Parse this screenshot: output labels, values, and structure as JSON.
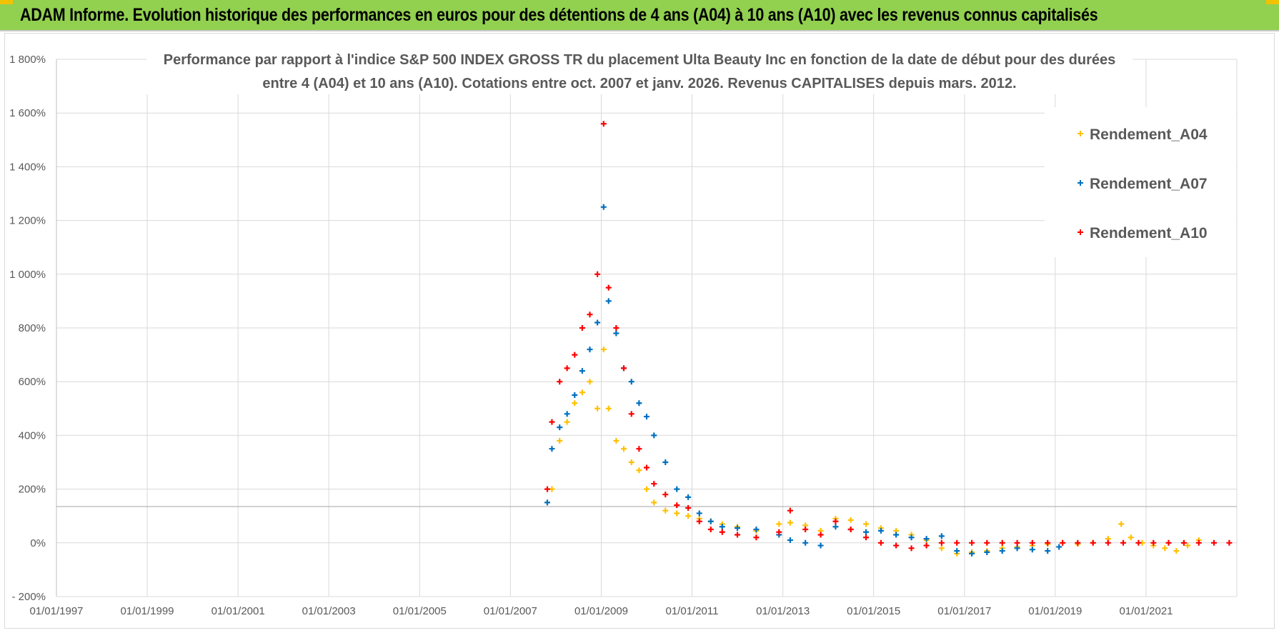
{
  "banner": {
    "text": "ADAM Informe. Evolution historique des performances en euros pour des détentions de 4 ans (A04) à 10 ans (A10) avec les revenus connus capitalisés"
  },
  "colors": {
    "banner_bg": "#92d050",
    "A04": "#ffc000",
    "A07": "#0070c0",
    "A10": "#ff0000",
    "grid": "#d9d9d9"
  },
  "chart_data": {
    "type": "scatter",
    "title_lines": [
      "Performance par rapport à l'indice S&P 500 INDEX GROSS TR  du placement Ulta Beauty Inc en fonction de la date de début pour des durées",
      "entre 4 (A04) et 10 ans (A10).  Cotations entre oct. 2007 et janv. 2026.  Revenus CAPITALISES depuis mars. 2012."
    ],
    "ylim": [
      -200,
      1800
    ],
    "y_ticks": [
      -200,
      0,
      200,
      400,
      600,
      800,
      1000,
      1200,
      1400,
      1600,
      1800
    ],
    "y_tick_labels": [
      "- 200%",
      "0%",
      "200%",
      "400%",
      "600%",
      "800%",
      "1 000%",
      "1 200%",
      "1 400%",
      "1 600%",
      "1 800%"
    ],
    "xlim": [
      "1997-01-01",
      "2023-01-01"
    ],
    "x_ticks": [
      "1997-01-01",
      "1999-01-01",
      "2001-01-01",
      "2003-01-01",
      "2005-01-01",
      "2007-01-01",
      "2009-01-01",
      "2011-01-01",
      "2013-01-01",
      "2015-01-01",
      "2017-01-01",
      "2019-01-01",
      "2021-01-01"
    ],
    "x_tick_labels": [
      "01/01/1997",
      "01/01/1999",
      "01/01/2001",
      "01/01/2003",
      "01/01/2005",
      "01/01/2007",
      "01/01/2009",
      "01/01/2011",
      "01/01/2013",
      "01/01/2015",
      "01/01/2017",
      "01/01/2019",
      "01/01/2021"
    ],
    "grid": true,
    "legend_position": "top-right",
    "marker": "+",
    "series": [
      {
        "name": "Rendement_A04",
        "x": [
          "2007-10-25",
          "2007-12-01",
          "2008-02-01",
          "2008-04-01",
          "2008-06-01",
          "2008-08-01",
          "2008-10-01",
          "2008-12-01",
          "2009-01-20",
          "2009-03-01",
          "2009-05-01",
          "2009-07-01",
          "2009-09-01",
          "2009-11-01",
          "2010-01-01",
          "2010-03-01",
          "2010-06-01",
          "2010-09-01",
          "2010-12-01",
          "2011-03-01",
          "2011-06-01",
          "2011-09-01",
          "2012-01-01",
          "2012-06-01",
          "2012-12-01",
          "2013-03-01",
          "2013-07-01",
          "2013-11-01",
          "2014-03-01",
          "2014-07-01",
          "2014-11-01",
          "2015-03-01",
          "2015-07-01",
          "2015-11-01",
          "2016-03-01",
          "2016-07-01",
          "2016-11-01",
          "2017-03-01",
          "2017-07-01",
          "2017-11-01",
          "2018-03-01",
          "2018-07-01",
          "2018-11-01",
          "2019-03-01",
          "2019-07-01",
          "2019-11-01",
          "2020-03-01",
          "2020-06-15",
          "2020-09-01",
          "2020-12-01",
          "2021-03-01",
          "2021-06-01",
          "2021-09-01",
          "2021-12-01",
          "2022-03-01"
        ],
        "y": [
          150,
          200,
          380,
          450,
          520,
          560,
          600,
          500,
          720,
          500,
          380,
          350,
          300,
          270,
          200,
          150,
          120,
          110,
          100,
          90,
          80,
          70,
          60,
          45,
          70,
          75,
          65,
          45,
          90,
          85,
          70,
          55,
          45,
          30,
          10,
          -20,
          -40,
          -35,
          -30,
          -20,
          -15,
          -10,
          -5,
          0,
          -5,
          0,
          15,
          70,
          20,
          0,
          -10,
          -20,
          -30,
          -10,
          10
        ]
      },
      {
        "name": "Rendement_A07",
        "x": [
          "2007-10-25",
          "2007-12-01",
          "2008-02-01",
          "2008-04-01",
          "2008-06-01",
          "2008-08-01",
          "2008-10-01",
          "2008-12-01",
          "2009-01-20",
          "2009-03-01",
          "2009-05-01",
          "2009-07-01",
          "2009-09-01",
          "2009-11-01",
          "2010-01-01",
          "2010-03-01",
          "2010-06-01",
          "2010-09-01",
          "2010-12-01",
          "2011-03-01",
          "2011-06-01",
          "2011-09-01",
          "2012-01-01",
          "2012-06-01",
          "2012-12-01",
          "2013-03-01",
          "2013-07-01",
          "2013-11-01",
          "2014-03-01",
          "2014-07-01",
          "2014-11-01",
          "2015-03-01",
          "2015-07-01",
          "2015-11-01",
          "2016-03-01",
          "2016-07-01",
          "2016-11-01",
          "2017-03-01",
          "2017-07-01",
          "2017-11-01",
          "2018-03-01",
          "2018-07-01",
          "2018-11-01",
          "2019-02-01"
        ],
        "y": [
          150,
          350,
          430,
          480,
          550,
          640,
          720,
          820,
          1250,
          900,
          780,
          650,
          600,
          520,
          470,
          400,
          300,
          200,
          170,
          110,
          80,
          60,
          55,
          50,
          30,
          10,
          0,
          -10,
          60,
          50,
          40,
          45,
          30,
          20,
          15,
          25,
          -30,
          -40,
          -35,
          -30,
          -20,
          -25,
          -30,
          -15
        ]
      },
      {
        "name": "Rendement_A10",
        "x": [
          "2007-10-25",
          "2007-12-01",
          "2008-02-01",
          "2008-04-01",
          "2008-06-01",
          "2008-08-01",
          "2008-10-01",
          "2008-12-01",
          "2009-01-20",
          "2009-03-01",
          "2009-05-01",
          "2009-07-01",
          "2009-09-01",
          "2009-11-01",
          "2010-01-01",
          "2010-03-01",
          "2010-06-01",
          "2010-09-01",
          "2010-12-01",
          "2011-03-01",
          "2011-06-01",
          "2011-09-01",
          "2012-01-01",
          "2012-06-01",
          "2012-12-01",
          "2013-03-01",
          "2013-07-01",
          "2013-11-01",
          "2014-03-01",
          "2014-07-01",
          "2014-11-01",
          "2015-03-01",
          "2015-07-01",
          "2015-11-01",
          "2016-03-01",
          "2016-07-01",
          "2016-11-01",
          "2017-03-01",
          "2017-07-01",
          "2017-11-01",
          "2018-03-01",
          "2018-07-01",
          "2018-11-01",
          "2019-03-01",
          "2019-07-01",
          "2019-11-01",
          "2020-03-01",
          "2020-07-01",
          "2020-11-01",
          "2021-03-01",
          "2021-07-01",
          "2021-11-01",
          "2022-03-01",
          "2022-07-01",
          "2022-11-01"
        ],
        "y": [
          200,
          450,
          600,
          650,
          700,
          800,
          850,
          1000,
          1560,
          950,
          800,
          650,
          480,
          350,
          280,
          220,
          180,
          140,
          130,
          80,
          50,
          40,
          30,
          20,
          40,
          120,
          50,
          30,
          80,
          50,
          20,
          0,
          -10,
          -20,
          -10,
          0,
          0,
          0,
          0,
          0,
          0,
          0,
          0,
          0,
          0,
          0,
          0,
          0,
          0,
          0,
          0,
          0,
          0,
          0,
          0
        ]
      }
    ]
  }
}
